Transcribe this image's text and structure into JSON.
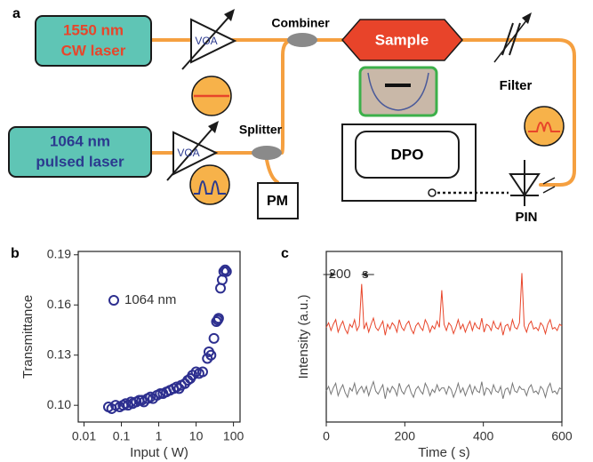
{
  "labels": [
    "a",
    "b",
    "c"
  ],
  "diagram": {
    "cw_laser": [
      "1550 nm",
      "CW laser"
    ],
    "pulsed_laser": [
      "1064 nm",
      "pulsed laser"
    ],
    "voa_1": "VOA",
    "voa_2": "VOA",
    "combiner": "Combiner",
    "splitter": "Splitter",
    "sample": "Sample",
    "filter": "Filter",
    "dpo": "DPO",
    "pin": "PIN",
    "pm": "PM"
  },
  "chart_data": [
    {
      "type": "scatter",
      "xlabel": "Input (  W)",
      "ylabel": "Transmittance",
      "xscale": "log",
      "xlim": [
        0.007,
        150
      ],
      "xticks": [
        0.01,
        0.1,
        1,
        10,
        100
      ],
      "ylim": [
        0.09,
        0.192
      ],
      "yticks": [
        {
          "value": 0.1,
          "label": "0.10"
        },
        0.13,
        0.16,
        0.19
      ],
      "x": [
        0.045,
        0.055,
        0.07,
        0.09,
        0.11,
        0.13,
        0.15,
        0.18,
        0.2,
        0.25,
        0.3,
        0.35,
        0.4,
        0.5,
        0.6,
        0.7,
        0.9,
        1.1,
        1.3,
        1.6,
        2,
        2.5,
        3,
        3.5,
        4,
        5,
        6,
        7,
        8,
        10,
        12,
        15,
        20,
        22,
        25,
        30,
        35,
        38,
        40,
        45,
        50,
        55,
        60,
        65
      ],
      "series": [
        {
          "name": "1064 nm",
          "color": "#2d2f8f",
          "values": [
            0.099,
            0.098,
            0.1,
            0.099,
            0.1,
            0.101,
            0.1,
            0.102,
            0.101,
            0.102,
            0.103,
            0.103,
            0.102,
            0.104,
            0.105,
            0.104,
            0.106,
            0.107,
            0.107,
            0.108,
            0.109,
            0.11,
            0.111,
            0.11,
            0.112,
            0.113,
            0.115,
            0.116,
            0.118,
            0.12,
            0.119,
            0.12,
            0.128,
            0.132,
            0.13,
            0.14,
            0.15,
            0.151,
            0.152,
            0.17,
            0.175,
            0.18,
            0.181,
            0.18
          ]
        }
      ]
    },
    {
      "type": "line",
      "xlabel": "Time (  s)",
      "ylabel": "Intensity (a.u.)",
      "annotation": "200   s",
      "xlim": [
        0,
        600
      ],
      "xticks": [
        0,
        200,
        400,
        600
      ],
      "ylim": [
        0,
        11
      ],
      "x": [
        0,
        6,
        12,
        18,
        24,
        30,
        36,
        42,
        48,
        54,
        60,
        66,
        72,
        78,
        84,
        90,
        96,
        102,
        108,
        114,
        120,
        126,
        132,
        138,
        144,
        150,
        156,
        162,
        168,
        174,
        180,
        186,
        192,
        198,
        204,
        210,
        216,
        222,
        228,
        234,
        240,
        246,
        252,
        258,
        264,
        270,
        276,
        282,
        288,
        294,
        300,
        306,
        312,
        318,
        324,
        330,
        336,
        342,
        348,
        354,
        360,
        366,
        372,
        378,
        384,
        390,
        396,
        402,
        408,
        414,
        420,
        426,
        432,
        438,
        444,
        450,
        456,
        462,
        468,
        474,
        480,
        486,
        492,
        498,
        504,
        510,
        516,
        522,
        528,
        534,
        540,
        546,
        552,
        558,
        564,
        570,
        576,
        582,
        588,
        594,
        600
      ],
      "series": [
        {
          "color": "#e8452a",
          "values": [
            6.1,
            6.4,
            5.9,
            6.3,
            6.6,
            5.8,
            6.2,
            6.5,
            6.0,
            5.7,
            6.3,
            6.1,
            6.6,
            5.9,
            6.2,
            8.9,
            6.0,
            6.4,
            5.8,
            6.3,
            6.7,
            6.1,
            5.9,
            6.2,
            6.5,
            5.6,
            6.3,
            6.0,
            6.4,
            6.2,
            5.8,
            6.6,
            6.1,
            5.9,
            6.3,
            6.5,
            6.0,
            5.7,
            6.2,
            6.4,
            6.1,
            5.9,
            6.6,
            6.3,
            5.8,
            6.2,
            6.0,
            6.5,
            6.1,
            8.5,
            6.3,
            5.9,
            6.4,
            6.2,
            5.7,
            6.1,
            6.6,
            6.0,
            6.3,
            5.8,
            6.2,
            6.5,
            5.9,
            6.4,
            6.1,
            6.0,
            6.7,
            5.8,
            6.3,
            6.2,
            5.9,
            6.5,
            6.1,
            6.0,
            6.4,
            5.6,
            6.2,
            6.3,
            5.9,
            6.6,
            6.1,
            6.0,
            6.4,
            9.6,
            6.2,
            5.8,
            6.3,
            6.5,
            6.0,
            6.1,
            5.9,
            6.4,
            6.2,
            5.7,
            6.3,
            6.6,
            6.0,
            6.1,
            5.9,
            6.3,
            6.2
          ]
        },
        {
          "color": "#777777",
          "values": [
            2.0,
            2.3,
            1.8,
            2.2,
            2.5,
            1.7,
            2.1,
            2.4,
            1.9,
            1.6,
            2.2,
            2.0,
            2.5,
            1.8,
            2.1,
            2.3,
            1.9,
            2.3,
            1.7,
            2.2,
            2.6,
            2.0,
            1.8,
            2.1,
            2.4,
            1.5,
            2.2,
            1.9,
            2.3,
            2.1,
            1.7,
            2.5,
            2.0,
            1.8,
            2.2,
            2.4,
            1.9,
            1.6,
            2.1,
            2.3,
            2.0,
            1.8,
            2.5,
            2.2,
            1.7,
            2.1,
            1.9,
            2.4,
            2.0,
            2.2,
            2.2,
            1.8,
            2.3,
            2.1,
            1.6,
            2.0,
            2.5,
            1.9,
            2.2,
            1.7,
            2.1,
            2.4,
            1.8,
            2.3,
            2.0,
            1.9,
            2.6,
            1.7,
            2.2,
            2.1,
            1.8,
            2.4,
            2.0,
            1.9,
            2.3,
            1.5,
            2.1,
            2.2,
            1.8,
            2.5,
            2.0,
            1.9,
            2.3,
            2.1,
            2.1,
            1.7,
            2.2,
            2.4,
            1.9,
            2.0,
            1.8,
            2.3,
            2.1,
            1.6,
            2.2,
            2.5,
            1.9,
            2.0,
            1.8,
            2.2,
            2.1
          ]
        }
      ]
    }
  ]
}
